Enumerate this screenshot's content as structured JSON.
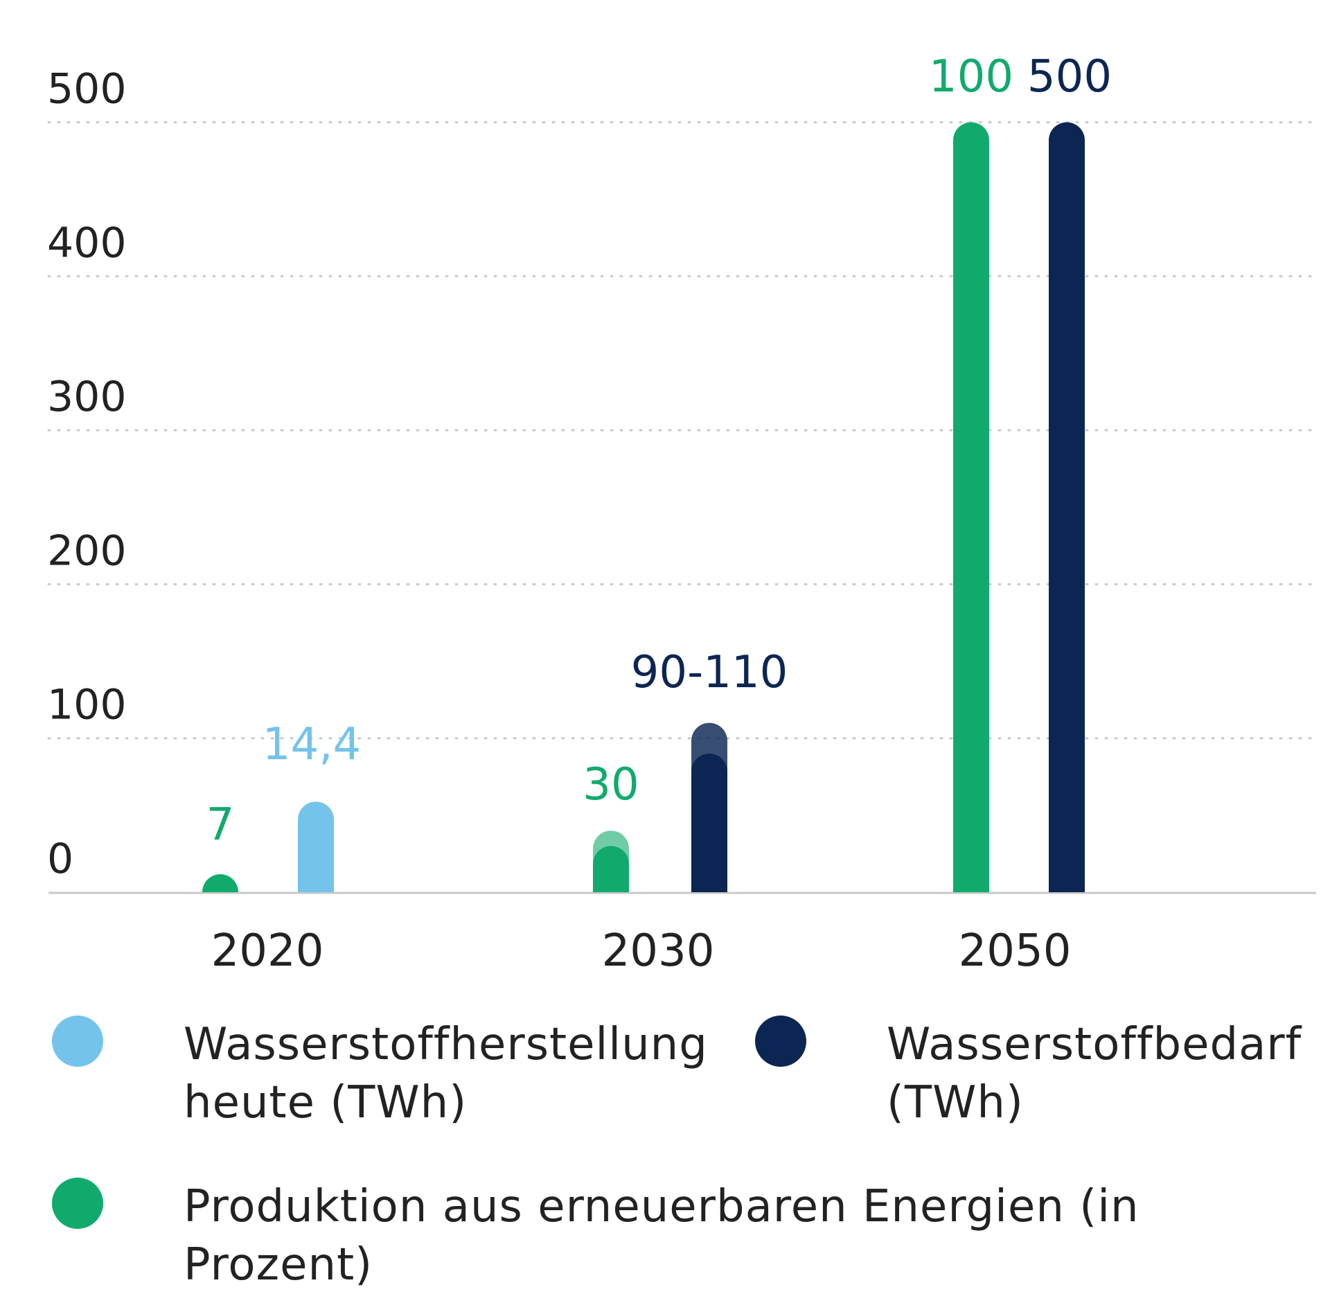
{
  "colors": {
    "light_blue": "#74C3EA",
    "navy": "#0C2653",
    "green": "#10AA6D",
    "axis": "#C8C8C8",
    "grid": "#C8C8C8",
    "text": "#222222"
  },
  "chart_data": {
    "type": "bar",
    "title": "",
    "xlabel": "",
    "ylabel": "",
    "ylim": [
      0,
      500
    ],
    "y_ticks": [
      "0",
      "100",
      "200",
      "300",
      "400",
      "500"
    ],
    "grid": true,
    "legend_placement": "bottom",
    "categories": [
      "2020",
      "2030",
      "2050"
    ],
    "series": [
      {
        "name": "Produktion aus erneuerbaren Energien (in Prozent)",
        "color": "#10AA6D",
        "values": [
          7,
          30,
          100
        ],
        "labels": [
          "7",
          "30",
          "100"
        ]
      },
      {
        "name": "Wasserstoffherstellung heute (TWh)",
        "color": "#74C3EA",
        "values": [
          14.4,
          null,
          null
        ],
        "labels": [
          "14,4",
          "",
          ""
        ]
      },
      {
        "name": "Wasserstoffbedarf (TWh)",
        "color": "#0C2653",
        "values": [
          null,
          110,
          500
        ],
        "range_low": [
          null,
          90,
          null
        ],
        "labels": [
          "",
          "90-110",
          "500"
        ]
      }
    ]
  },
  "legend": [
    {
      "label_line1": "Wasserstoffherstellung",
      "label_line2": "heute (TWh)",
      "color": "#74C3EA"
    },
    {
      "label_line1": "Wasserstoffbedarf",
      "label_line2": "(TWh)",
      "color": "#0C2653"
    },
    {
      "label_line1": "Produktion aus erneuerbaren Energien (in Prozent)",
      "label_line2": "",
      "color": "#10AA6D"
    }
  ]
}
